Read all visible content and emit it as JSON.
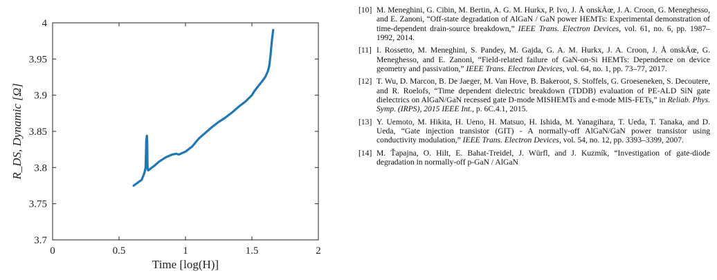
{
  "chart_data": {
    "type": "line",
    "xlabel": "Time [log(H)]",
    "ylabel": "R_DS, Dynamic [Ω]",
    "xlim": [
      0,
      2
    ],
    "ylim": [
      3.7,
      4.0
    ],
    "xticks": [
      "0",
      "0.5",
      "1",
      "1.5",
      "2"
    ],
    "yticks": [
      "3.7",
      "3.75",
      "3.8",
      "3.85",
      "3.9",
      "3.95",
      "4"
    ],
    "grid": false,
    "line_color": "#1f77b4",
    "series": [
      {
        "x": [
          0.61,
          0.64,
          0.67,
          0.69,
          0.7,
          0.705,
          0.71,
          0.712,
          0.714,
          0.716,
          0.72,
          0.74,
          0.77,
          0.8,
          0.85,
          0.9,
          0.93,
          0.95,
          1.0,
          1.05,
          1.1,
          1.15,
          1.2,
          1.25,
          1.3,
          1.35,
          1.4,
          1.45,
          1.5,
          1.52,
          1.55,
          1.58,
          1.6,
          1.62,
          1.63,
          1.64,
          1.65,
          1.66
        ],
        "y": [
          3.775,
          3.779,
          3.783,
          3.792,
          3.8,
          3.838,
          3.844,
          3.835,
          3.805,
          3.797,
          3.796,
          3.799,
          3.803,
          3.808,
          3.814,
          3.818,
          3.819,
          3.818,
          3.822,
          3.829,
          3.84,
          3.848,
          3.856,
          3.863,
          3.869,
          3.876,
          3.884,
          3.891,
          3.9,
          3.906,
          3.913,
          3.92,
          3.925,
          3.933,
          3.94,
          3.955,
          3.975,
          3.99
        ]
      }
    ]
  },
  "references": [
    {
      "num": "[10]",
      "before": "M. Meneghini, G. Cibin, M. Bertin, A. G. M. Hurkx, P. Ivo, J. Å onskÃœ, J. A. Croon, G. Meneghesso, and E. Zanoni, “Off-state degradation of AlGaN / GaN power HEMTs: Experimental demonstration of time-dependent drain-source breakdown,” ",
      "journal": "IEEE Trans. Electron Devices",
      "after": ", vol. 61, no. 6, pp. 1987–1992, 2014."
    },
    {
      "num": "[11]",
      "before": "I. Rossetto, M. Meneghini, S. Pandey, M. Gajda, G. A. M. Hurkx, J. A. Croon, J. Å onskÃœ, G. Meneghesso, and E. Zanoni, “Field-related failure of GaN-on-Si HEMTs: Dependence on device geometry and passivation,” ",
      "journal": "IEEE Trans. Electron Devices",
      "after": ", vol. 64, no. 1, pp. 73–77, 2017."
    },
    {
      "num": "[12]",
      "before": "T. Wu, D. Marcon, B. De Jaeger, M. Van Hove, B. Bakeroot, S. Stoffels, G. Groeseneken, S. Decoutere, and R. Roelofs, “Time dependent dielectric breakdown (TDDB) evaluation of PE-ALD SiN gate dielectrics on AlGaN/GaN recessed gate D-mode MISHEMTs and e-mode MIS-FETs,” in ",
      "journal": "Reliab. Phys. Symp. (IRPS), 2015 IEEE Int.",
      "after": ", p. 6C.4.1, 2015."
    },
    {
      "num": "[13]",
      "before": "Y. Uemoto, M. Hikita, H. Ueno, H. Matsuo, H. Ishida, M. Yanagihara, T. Ueda, T. Tanaka, and D. Ueda, “Gate injection transistor (GIT) - A normally-off AlGaN/GaN power transistor using conductivity modulation,” ",
      "journal": "IEEE Trans. Electron Devices",
      "after": ", vol. 54, no. 12, pp. 3393–3399, 2007."
    },
    {
      "num": "[14]",
      "before": "M. Ťapajna, O. Hilt, E. Bahat-Treidel, J. Würfl, and J. Kuzmík, “Investigation of gate-diode degradation in normally-off p-GaN / AlGaN",
      "journal": "",
      "after": ""
    }
  ]
}
